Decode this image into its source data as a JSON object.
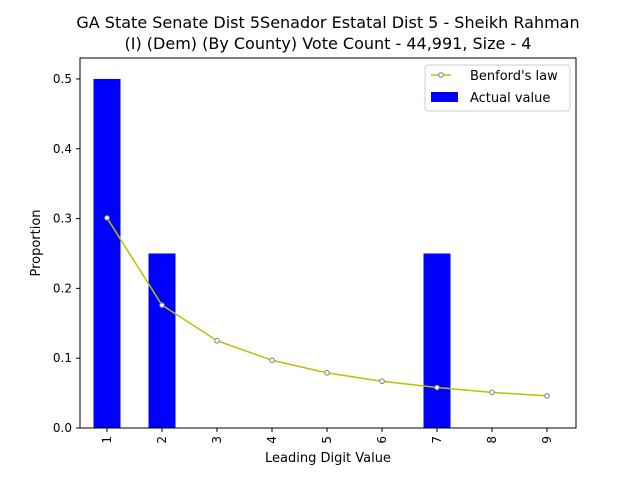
{
  "chart_data": {
    "type": "bar",
    "title_line1": "GA State Senate Dist 5Senador Estatal Dist 5 - Sheikh Rahman",
    "title_line2": "(I) (Dem) (By County) Vote Count - 44,991, Size - 4",
    "xlabel": "Leading Digit Value",
    "ylabel": "Proportion",
    "categories": [
      "1",
      "2",
      "3",
      "4",
      "5",
      "6",
      "7",
      "8",
      "9"
    ],
    "yticks": [
      "0.0",
      "0.1",
      "0.2",
      "0.3",
      "0.4",
      "0.5"
    ],
    "ylim": [
      0,
      0.53
    ],
    "grid": false,
    "legend_position": "top-right",
    "series": [
      {
        "name": "Actual value",
        "kind": "bar",
        "color": "#0000ff",
        "values": [
          0.5,
          0.25,
          0,
          0,
          0,
          0,
          0.25,
          0,
          0
        ]
      },
      {
        "name": "Benford's law",
        "kind": "line",
        "color": "#bfbf00",
        "marker_color": "#808080",
        "values": [
          0.301,
          0.176,
          0.125,
          0.097,
          0.079,
          0.067,
          0.058,
          0.051,
          0.046
        ]
      }
    ]
  }
}
